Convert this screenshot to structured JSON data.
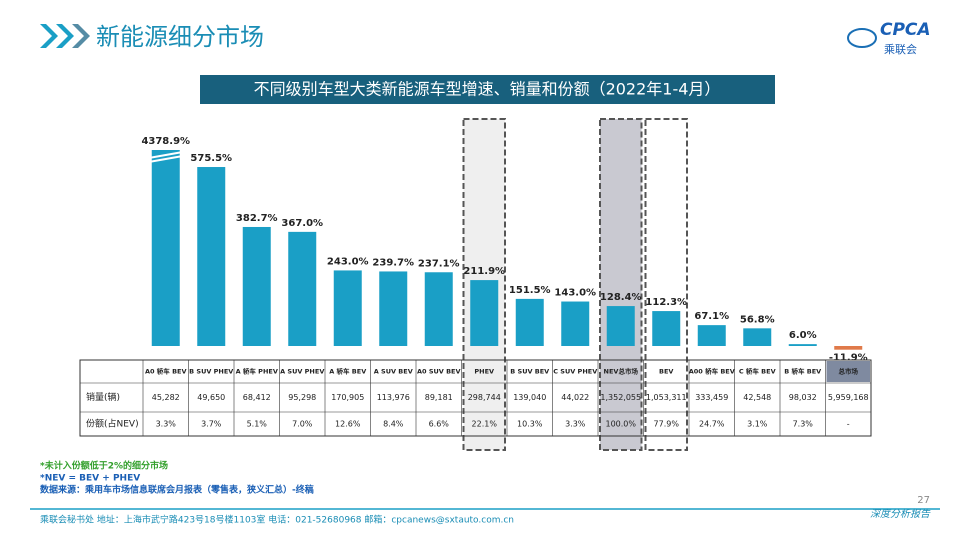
{
  "header": {
    "title": "新能源细分市场",
    "logo_text": "CPCA",
    "logo_sub": "乘联会"
  },
  "chart_data": {
    "type": "bar",
    "title": "不同级别车型大类新能源车型增速、销量和份额（2022年1-4月）",
    "categories": [
      "A0 轿车 BEV",
      "B SUV PHEV",
      "A 轿车 PHEV",
      "A SUV PHEV",
      "A 轿车 BEV",
      "A SUV BEV",
      "A0 SUV BEV",
      "PHEV",
      "B SUV BEV",
      "C SUV PHEV",
      "NEV总市场",
      "BEV",
      "A00 轿车 BEV",
      "C 轿车 BEV",
      "B 轿车 BEV",
      "总市场"
    ],
    "values": [
      4378.9,
      575.5,
      382.7,
      367.0,
      243.0,
      239.7,
      237.1,
      211.9,
      151.5,
      143.0,
      128.4,
      112.3,
      67.1,
      56.8,
      6.0,
      -11.9
    ],
    "value_labels": [
      "4378.9%",
      "575.5%",
      "382.7%",
      "367.0%",
      "243.0%",
      "239.7%",
      "237.1%",
      "211.9%",
      "151.5%",
      "143.0%",
      "128.4%",
      "112.3%",
      "67.1%",
      "56.8%",
      "6.0%",
      "-11.9%"
    ],
    "color": "#1a9fc6",
    "negative_color": "#e07a4a",
    "highlight": [
      {
        "index": 7,
        "fill": "#efefef"
      },
      {
        "index": 10,
        "fill": "#c9c9d1"
      },
      {
        "index": 11,
        "fill": "none"
      }
    ]
  },
  "table": {
    "rows": [
      {
        "label": "销量(辆)",
        "cells": [
          "45,282",
          "49,650",
          "68,412",
          "95,298",
          "170,905",
          "113,976",
          "89,181",
          "298,744",
          "139,040",
          "44,022",
          "1,352,055",
          "1,053,311",
          "333,459",
          "42,548",
          "98,032",
          "5,959,168"
        ]
      },
      {
        "label": "份额(占NEV)",
        "cells": [
          "3.3%",
          "3.7%",
          "5.1%",
          "7.0%",
          "12.6%",
          "8.4%",
          "6.6%",
          "22.1%",
          "10.3%",
          "3.3%",
          "100.0%",
          "77.9%",
          "24.7%",
          "3.1%",
          "7.3%",
          "-"
        ]
      }
    ]
  },
  "notes": [
    "*未计入份额低于2%的细分市场",
    "*NEV = BEV + PHEV",
    "数据来源：乘用车市场信息联席会月报表（零售表，狭义汇总）-终稿"
  ],
  "page_number": "27",
  "footer": {
    "left": "乘联会秘书处   地址：上海市武宁路423号18号楼1103室   电话：021-52680968   邮箱：cpcanews@sxtauto.com.cn",
    "right": "深度分析报告"
  }
}
